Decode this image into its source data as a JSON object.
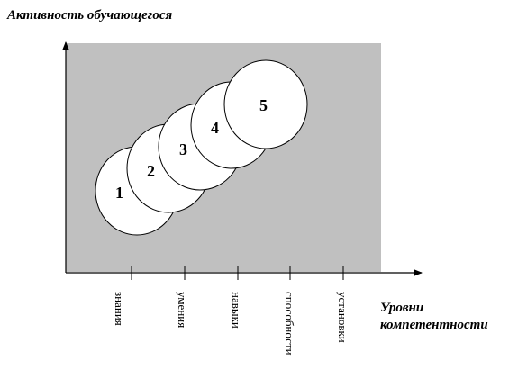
{
  "y_axis_title": "Активность обучающегося",
  "x_axis_title_lines": [
    "Уровни",
    "компетентности"
  ],
  "x_ticks": [
    "знания",
    "умения",
    "навыки",
    "способности",
    "установки"
  ],
  "circles": [
    "1",
    "2",
    "3",
    "4",
    "5"
  ],
  "colors": {
    "plot_background": "#c0c0c0",
    "circle_fill": "#ffffff",
    "stroke": "#000000"
  }
}
